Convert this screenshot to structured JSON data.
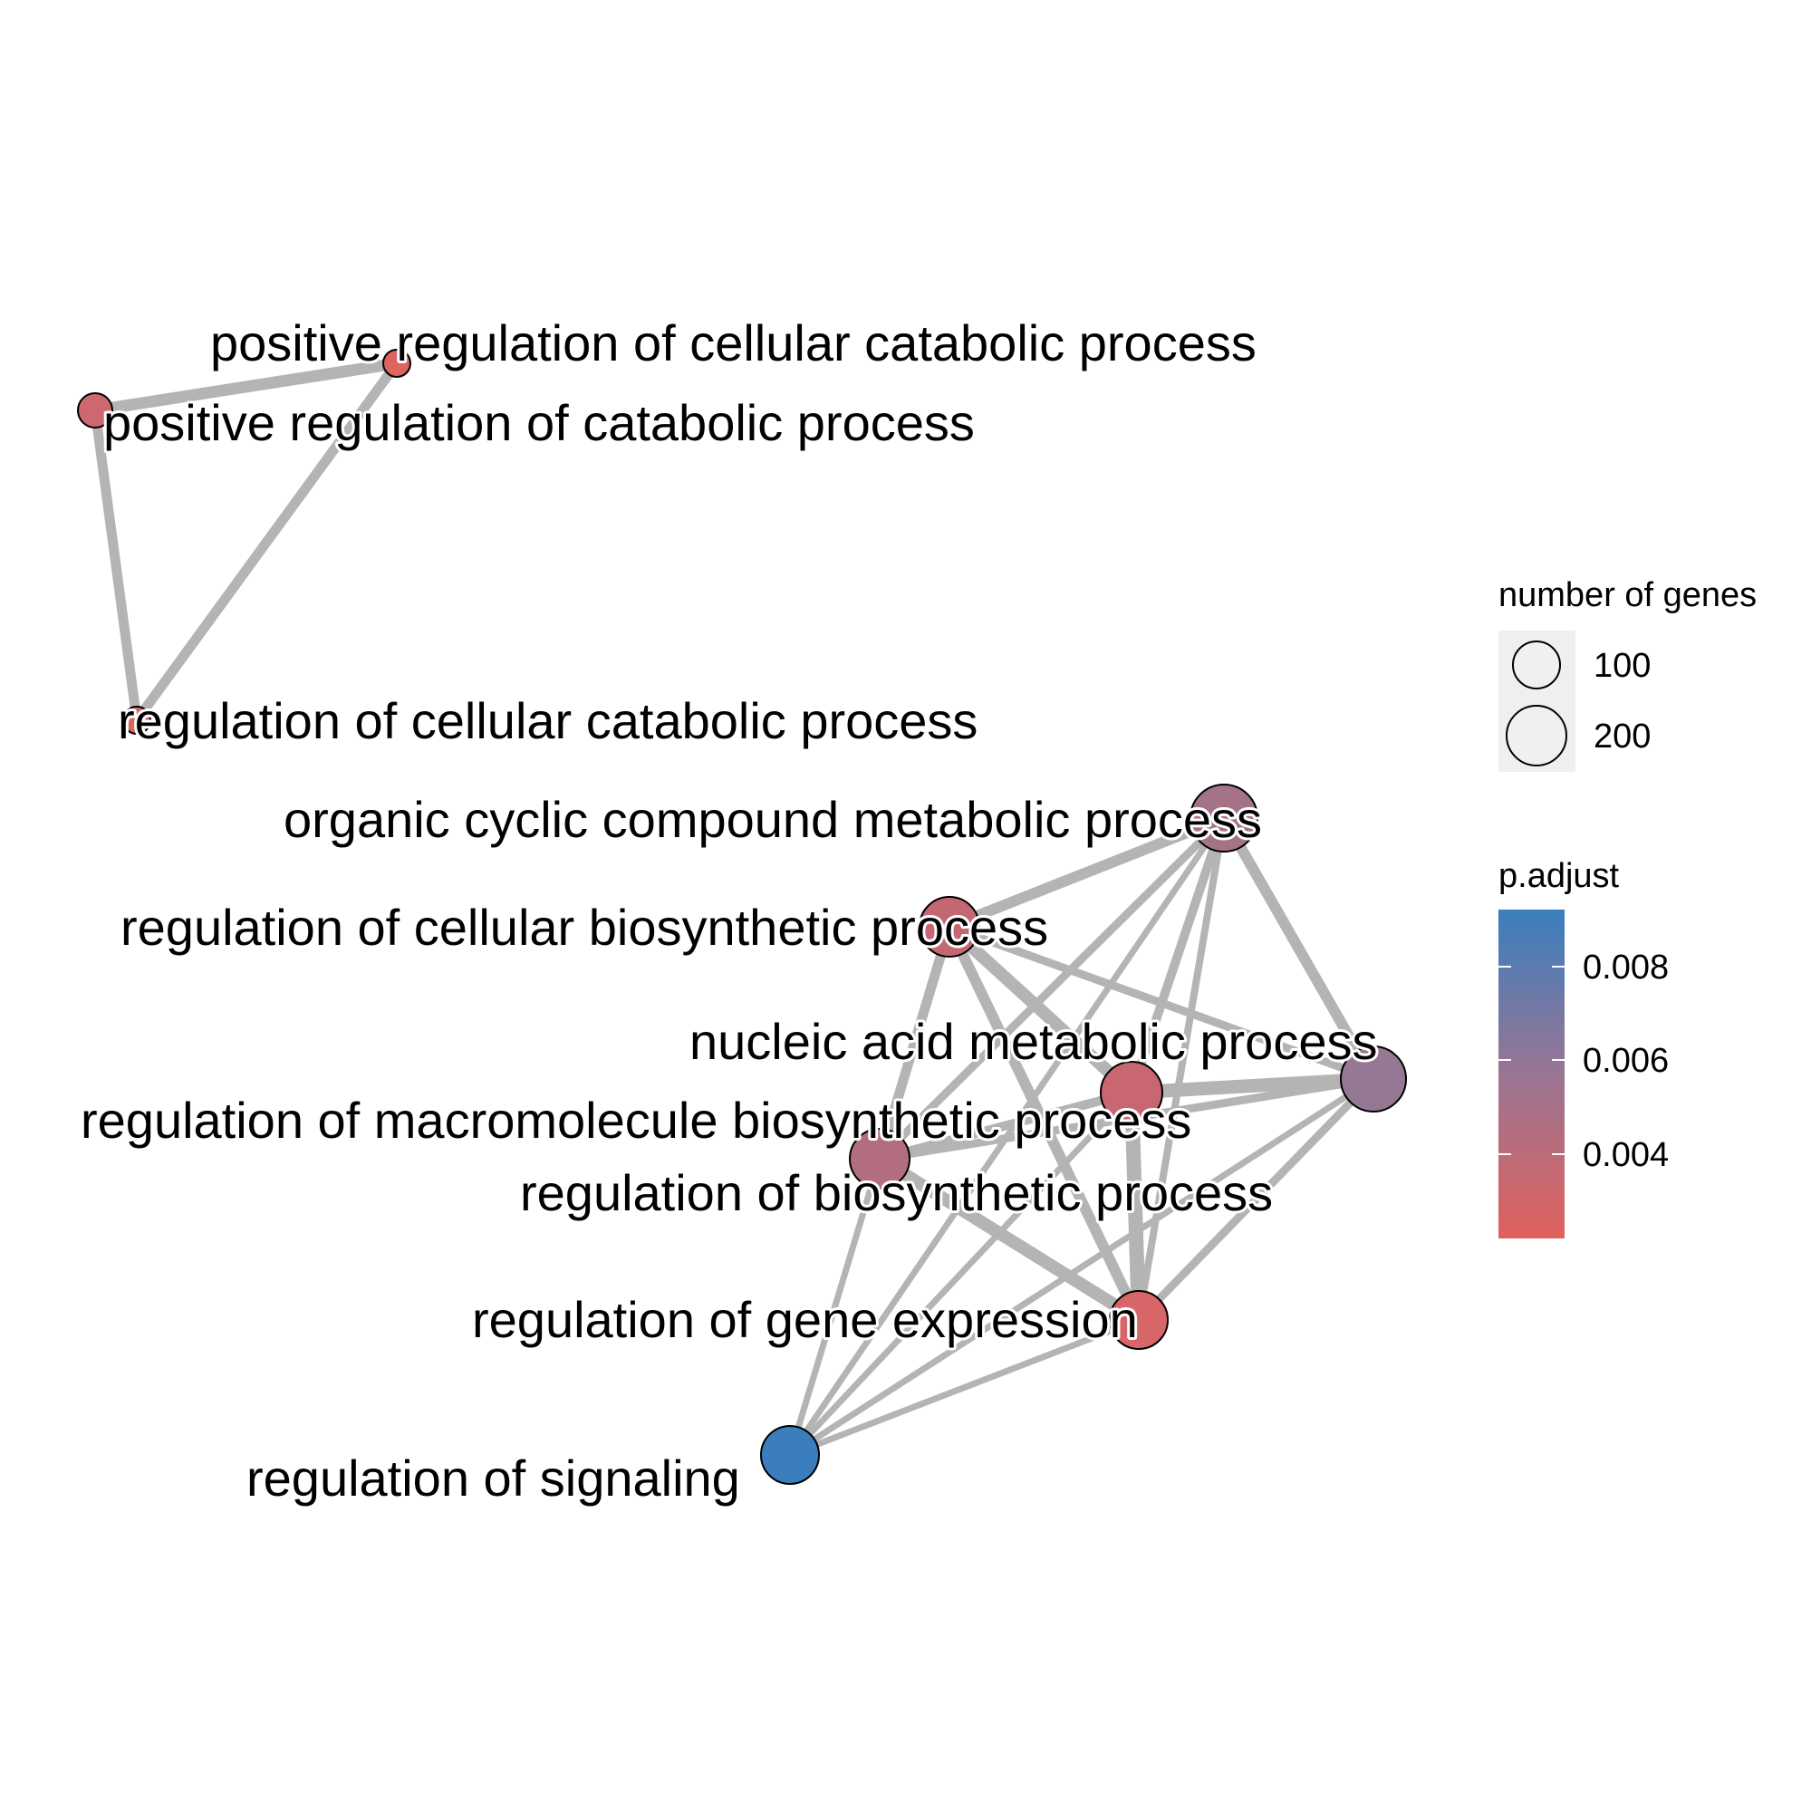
{
  "nodes": [
    {
      "id": "pcatab_cell",
      "label": "positive regulation of cellular catabolic process",
      "color": "#DC6560"
    },
    {
      "id": "pcatab",
      "label": "positive regulation of catabolic process",
      "color": "#CE6870"
    },
    {
      "id": "rcatab_cell",
      "label": "regulation of cellular catabolic process",
      "color": "#DC6560"
    },
    {
      "id": "occmp",
      "label": "organic cyclic compound metabolic process",
      "color": "#A57388"
    },
    {
      "id": "rcbp",
      "label": "regulation of cellular biosynthetic process",
      "color": "#C36873"
    },
    {
      "id": "namp",
      "label": "nucleic acid metabolic process",
      "color": "#947894"
    },
    {
      "id": "rmbp",
      "label": "regulation of macromolecule biosynthetic process",
      "color": "#B26E7F"
    },
    {
      "id": "rbp",
      "label": "regulation of biosynthetic process",
      "color": "#C86671"
    },
    {
      "id": "rge",
      "label": "regulation of gene expression",
      "color": "#D86567"
    },
    {
      "id": "rsig",
      "label": "regulation of signaling",
      "color": "#3A7EBE"
    }
  ],
  "edges": [
    {
      "source": "pcatab_cell",
      "target": "pcatab"
    },
    {
      "source": "pcatab_cell",
      "target": "rcatab_cell"
    },
    {
      "source": "pcatab",
      "target": "rcatab_cell"
    },
    {
      "source": "occmp",
      "target": "rcbp"
    },
    {
      "source": "occmp",
      "target": "namp"
    },
    {
      "source": "occmp",
      "target": "rmbp"
    },
    {
      "source": "occmp",
      "target": "rbp"
    },
    {
      "source": "occmp",
      "target": "rge"
    },
    {
      "source": "occmp",
      "target": "rsig"
    },
    {
      "source": "rcbp",
      "target": "namp"
    },
    {
      "source": "rcbp",
      "target": "rmbp"
    },
    {
      "source": "rcbp",
      "target": "rbp"
    },
    {
      "source": "rcbp",
      "target": "rge"
    },
    {
      "source": "namp",
      "target": "rmbp"
    },
    {
      "source": "namp",
      "target": "rbp"
    },
    {
      "source": "namp",
      "target": "rge"
    },
    {
      "source": "namp",
      "target": "rsig"
    },
    {
      "source": "rmbp",
      "target": "rbp"
    },
    {
      "source": "rmbp",
      "target": "rge"
    },
    {
      "source": "rmbp",
      "target": "rsig"
    },
    {
      "source": "rbp",
      "target": "rge"
    },
    {
      "source": "rbp",
      "target": "rsig"
    },
    {
      "source": "rge",
      "target": "rsig"
    }
  ],
  "legend": {
    "size_title": "number of genes",
    "size_values": [
      "100",
      "200"
    ],
    "color_title": "p.adjust",
    "color_ticks": [
      "0.008",
      "0.006",
      "0.004"
    ],
    "color_high": "#3A7EBE",
    "color_low": "#E0615D"
  }
}
